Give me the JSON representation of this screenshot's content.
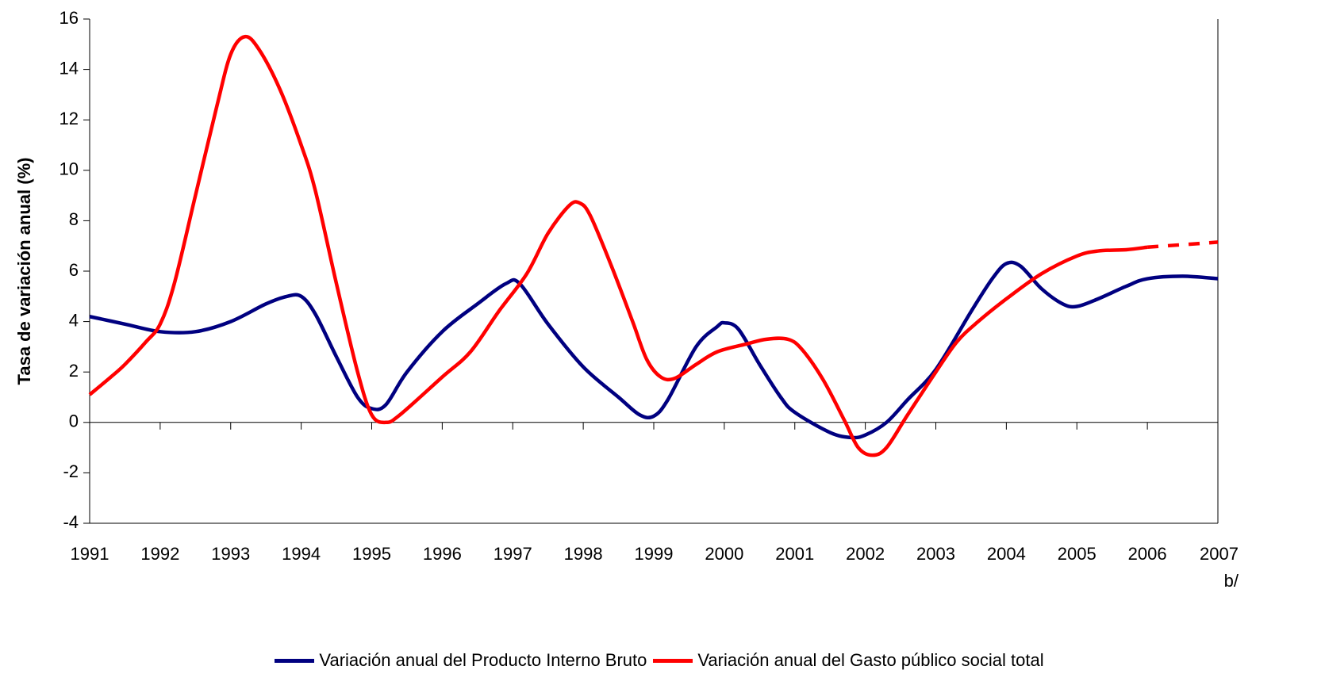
{
  "chart_data": {
    "type": "line",
    "y_label": "Tasa de variación anual (%)",
    "xlim": [
      1991,
      2007
    ],
    "xticks": [
      1991,
      1992,
      1993,
      1994,
      1995,
      1996,
      1997,
      1998,
      1999,
      2000,
      2001,
      2002,
      2003,
      2004,
      2005,
      2006,
      {
        "value": 2007,
        "label": "2007\nb/"
      }
    ],
    "ylim": [
      -4,
      16
    ],
    "yticks": [
      -4,
      -2,
      0,
      2,
      4,
      6,
      8,
      10,
      12,
      14,
      16
    ],
    "legend": "bottom",
    "series": [
      {
        "name": "Variación anual del Producto Interno Bruto",
        "color": "#000080",
        "x": [
          1991,
          1991.5,
          1992,
          1992.5,
          1993,
          1993.5,
          1993.8,
          1994,
          1994.2,
          1994.5,
          1994.8,
          1995,
          1995.2,
          1995.5,
          1996,
          1996.5,
          1996.9,
          1997.1,
          1997.5,
          1998,
          1998.5,
          1998.8,
          1999,
          1999.2,
          1999.6,
          1999.9,
          2000,
          2000.2,
          2000.5,
          2000.8,
          2001,
          2001.5,
          2001.8,
          2002,
          2002.3,
          2002.6,
          2003,
          2003.5,
          2003.8,
          2004,
          2004.2,
          2004.5,
          2004.8,
          2005,
          2005.3,
          2005.7,
          2006,
          2006.5,
          2007
        ],
        "values": [
          4.2,
          3.9,
          3.6,
          3.6,
          4.0,
          4.7,
          5.0,
          5.0,
          4.3,
          2.6,
          1.0,
          0.55,
          0.7,
          2.0,
          3.6,
          4.7,
          5.5,
          5.5,
          3.9,
          2.2,
          1.0,
          0.3,
          0.25,
          0.9,
          3.0,
          3.8,
          3.95,
          3.7,
          2.3,
          1.0,
          0.4,
          -0.4,
          -0.6,
          -0.5,
          0,
          0.9,
          2.1,
          4.4,
          5.7,
          6.3,
          6.2,
          5.3,
          4.7,
          4.6,
          4.9,
          5.4,
          5.7,
          5.8,
          5.7
        ]
      },
      {
        "name": "Variación anual del Gasto público social total",
        "color": "#ff0000",
        "dashed_from": 2006,
        "x": [
          1991,
          1991.3,
          1991.5,
          1991.8,
          1992,
          1992.2,
          1992.5,
          1992.8,
          1993,
          1993.2,
          1993.4,
          1993.7,
          1994,
          1994.2,
          1994.5,
          1994.8,
          1995,
          1995.2,
          1995.4,
          1996,
          1996.4,
          1996.8,
          1997.2,
          1997.5,
          1997.8,
          1997.95,
          1998.1,
          1998.4,
          1998.7,
          1998.9,
          1999.1,
          1999.3,
          1999.6,
          1999.9,
          2000.3,
          2000.6,
          2000.9,
          2001.1,
          2001.4,
          2001.7,
          2001.9,
          2002.1,
          2002.3,
          2002.6,
          2003,
          2003.3,
          2003.6,
          2004,
          2004.5,
          2005,
          2005.3,
          2005.7,
          2006,
          2007
        ],
        "values": [
          1.1,
          1.8,
          2.3,
          3.2,
          3.9,
          5.5,
          9.0,
          12.5,
          14.6,
          15.3,
          14.8,
          13.2,
          11.0,
          9.2,
          5.5,
          2.0,
          0.3,
          0,
          0.3,
          1.8,
          2.8,
          4.4,
          5.9,
          7.5,
          8.6,
          8.7,
          8.2,
          6.2,
          4.0,
          2.5,
          1.8,
          1.75,
          2.3,
          2.8,
          3.1,
          3.3,
          3.3,
          2.9,
          1.7,
          0.1,
          -1.0,
          -1.3,
          -1.0,
          0.3,
          2.0,
          3.2,
          4.0,
          4.9,
          5.9,
          6.6,
          6.8,
          6.85,
          6.95,
          7.15
        ]
      }
    ]
  }
}
